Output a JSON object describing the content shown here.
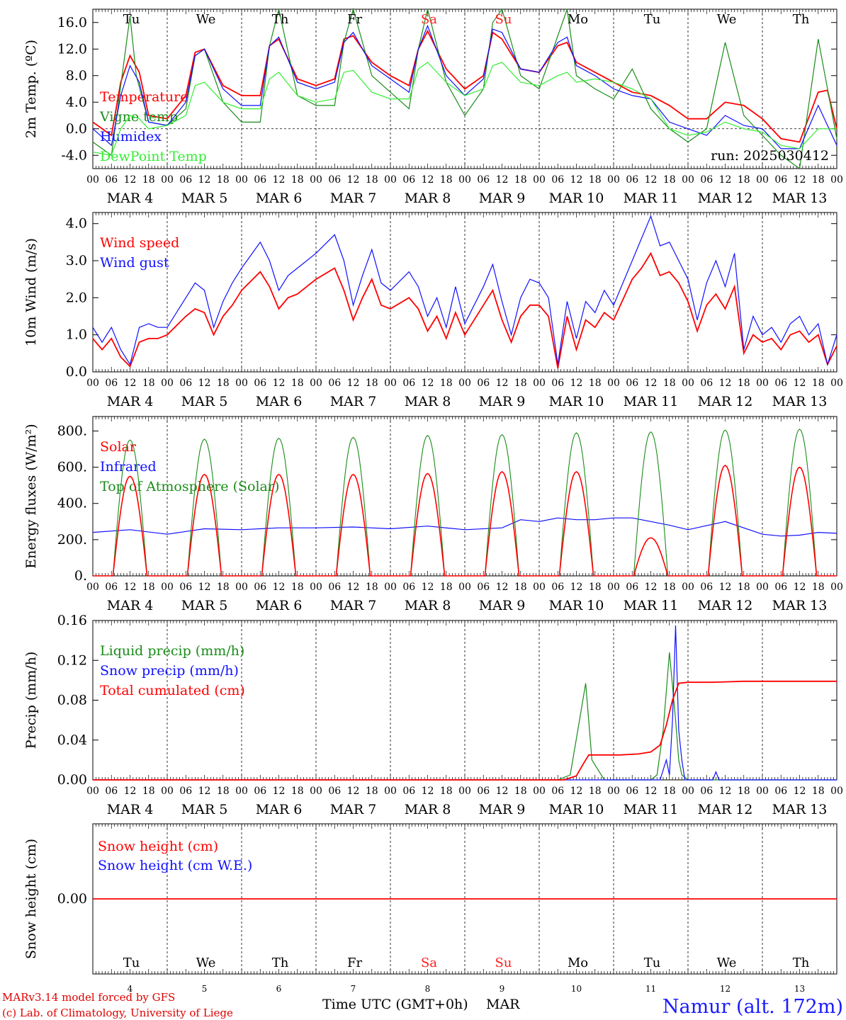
{
  "colors": {
    "red": "#ff0000",
    "green": "#1a8c1a",
    "blue": "#1010ff",
    "lightgreen": "#33ee33",
    "weekend": "#ff2020",
    "station": "#1a1aff"
  },
  "days": [
    {
      "name": "Tu",
      "date": "MAR  4",
      "num": "4",
      "weekend": false
    },
    {
      "name": "We",
      "date": "MAR  5",
      "num": "5",
      "weekend": false
    },
    {
      "name": "Th",
      "date": "MAR  6",
      "num": "6",
      "weekend": false
    },
    {
      "name": "Fr",
      "date": "MAR  7",
      "num": "7",
      "weekend": false
    },
    {
      "name": "Sa",
      "date": "MAR  8",
      "num": "8",
      "weekend": true
    },
    {
      "name": "Su",
      "date": "MAR  9",
      "num": "9",
      "weekend": true
    },
    {
      "name": "Mo",
      "date": "MAR 10",
      "num": "10",
      "weekend": false
    },
    {
      "name": "Tu",
      "date": "MAR 11",
      "num": "11",
      "weekend": false
    },
    {
      "name": "We",
      "date": "MAR 12",
      "num": "12",
      "weekend": false
    },
    {
      "name": "Th",
      "date": "MAR 13",
      "num": "13",
      "weekend": false
    }
  ],
  "hour_ticks": [
    "00",
    "06",
    "12",
    "18"
  ],
  "footer": {
    "model": "MARv3.14 model forced by GFS",
    "credit": "(c) Lab. of Climatology, University of Liege",
    "xtitle": "Time UTC (GMT+0h)",
    "month": "MAR",
    "station": "Namur (alt. 172m)"
  },
  "chart_data": [
    {
      "type": "line",
      "ylabel": "2m Temp. (ºC)",
      "ylim": [
        -6.0,
        18.0
      ],
      "yticks": [
        "-4.0",
        "0.0",
        "4.0",
        "8.0",
        "12.0",
        "16.0"
      ],
      "ytick_values": [
        -4,
        0,
        4,
        8,
        12,
        16
      ],
      "zero_line": true,
      "annotation": "run: 2025030412",
      "x_unit": "hours since MAR 4 00 UTC",
      "series": [
        {
          "name": "Temperature",
          "color": "red",
          "x": [
            0,
            6,
            9,
            12,
            15,
            18,
            24,
            30,
            33,
            36,
            42,
            48,
            54,
            57,
            60,
            66,
            72,
            78,
            81,
            84,
            90,
            96,
            102,
            105,
            108,
            114,
            120,
            126,
            129,
            132,
            138,
            144,
            150,
            153,
            156,
            162,
            168,
            174,
            180,
            186,
            192,
            198,
            204,
            210,
            216,
            222,
            228,
            234,
            237,
            240
          ],
          "y": [
            1.0,
            -1.0,
            7.0,
            11.0,
            8.5,
            2.0,
            1.5,
            5.0,
            11.5,
            12.0,
            6.5,
            5.0,
            5.0,
            12.5,
            13.5,
            7.5,
            6.5,
            7.5,
            13.5,
            14.0,
            10.0,
            8.0,
            6.5,
            12.0,
            14.7,
            9.0,
            6.0,
            8.0,
            14.5,
            13.5,
            9.0,
            8.5,
            12.5,
            13.0,
            10.0,
            8.5,
            7.0,
            5.5,
            5.0,
            3.5,
            1.5,
            1.5,
            4.0,
            3.5,
            1.5,
            -1.5,
            -2.0,
            5.5,
            5.8,
            0.0
          ]
        },
        {
          "name": "Vigne temp",
          "color": "green",
          "x": [
            0,
            6,
            10,
            12,
            14,
            18,
            24,
            30,
            33,
            36,
            42,
            48,
            54,
            57,
            60,
            66,
            72,
            78,
            81,
            84,
            90,
            96,
            102,
            105,
            108,
            114,
            120,
            126,
            129,
            132,
            138,
            144,
            150,
            153,
            156,
            162,
            168,
            174,
            180,
            186,
            192,
            198,
            204,
            210,
            216,
            222,
            228,
            234,
            240
          ],
          "y": [
            -2.0,
            -4.0,
            10.0,
            17.0,
            8.0,
            1.0,
            0.5,
            3.0,
            11.0,
            12.0,
            4.0,
            1.0,
            1.0,
            12.5,
            18.0,
            5.0,
            3.5,
            3.5,
            13.0,
            18.0,
            8.0,
            5.5,
            3.0,
            12.0,
            18.0,
            7.0,
            2.0,
            6.0,
            16.0,
            18.0,
            8.0,
            6.0,
            14.0,
            18.0,
            8.0,
            6.0,
            4.5,
            9.0,
            3.0,
            0.0,
            -2.0,
            0.0,
            13.0,
            2.0,
            -1.0,
            -4.0,
            -6.0,
            13.5,
            -1.5
          ]
        },
        {
          "name": "Humidex",
          "color": "blue",
          "x": [
            0,
            6,
            9,
            12,
            15,
            18,
            24,
            30,
            33,
            36,
            42,
            48,
            54,
            57,
            60,
            66,
            72,
            78,
            81,
            84,
            90,
            96,
            102,
            105,
            108,
            114,
            120,
            126,
            129,
            132,
            138,
            144,
            150,
            153,
            156,
            162,
            168,
            174,
            180,
            186,
            192,
            198,
            204,
            210,
            216,
            222,
            228,
            234,
            240
          ],
          "y": [
            0.0,
            -2.5,
            5.0,
            9.5,
            7.0,
            1.0,
            0.5,
            4.0,
            11.0,
            12.0,
            6.0,
            3.5,
            3.5,
            12.5,
            13.8,
            7.0,
            6.0,
            7.0,
            13.0,
            14.5,
            9.5,
            7.5,
            5.5,
            12.0,
            15.5,
            8.0,
            5.0,
            7.5,
            15.0,
            14.5,
            9.0,
            8.5,
            13.0,
            13.8,
            9.5,
            8.0,
            6.0,
            5.0,
            4.5,
            1.0,
            0.0,
            -1.0,
            2.0,
            0.5,
            0.0,
            -3.0,
            -3.0,
            3.5,
            -2.5
          ]
        },
        {
          "name": "DewPoint Temp",
          "color": "lightgreen",
          "x": [
            0,
            6,
            9,
            12,
            15,
            18,
            24,
            30,
            33,
            36,
            42,
            48,
            54,
            57,
            60,
            66,
            72,
            78,
            81,
            84,
            90,
            96,
            102,
            105,
            108,
            114,
            120,
            126,
            129,
            132,
            138,
            144,
            150,
            153,
            156,
            162,
            168,
            174,
            180,
            186,
            192,
            198,
            204,
            210,
            216,
            222,
            228,
            234,
            240
          ],
          "y": [
            -3.5,
            -4.0,
            0.0,
            2.0,
            1.5,
            0.0,
            0.5,
            2.0,
            6.5,
            7.0,
            4.0,
            3.0,
            3.0,
            7.5,
            8.5,
            5.0,
            4.0,
            4.5,
            8.5,
            8.8,
            5.5,
            4.5,
            4.5,
            9.0,
            10.0,
            7.0,
            5.0,
            6.0,
            9.5,
            10.0,
            7.0,
            6.5,
            8.0,
            8.5,
            7.0,
            7.5,
            7.0,
            6.0,
            4.5,
            0.0,
            -1.0,
            -0.5,
            1.0,
            0.0,
            -0.5,
            -2.5,
            -3.0,
            0.0,
            0.0
          ]
        }
      ]
    },
    {
      "type": "line",
      "ylabel": "10m Wind (m/s)",
      "ylim": [
        0.0,
        4.3
      ],
      "yticks": [
        "0.0",
        "1.0",
        "2.0",
        "3.0",
        "4.0"
      ],
      "ytick_values": [
        0,
        1,
        2,
        3,
        4
      ],
      "series": [
        {
          "name": "Wind speed",
          "color": "red",
          "x": [
            0,
            3,
            6,
            9,
            12,
            15,
            18,
            21,
            24,
            30,
            33,
            36,
            39,
            42,
            45,
            48,
            54,
            57,
            60,
            63,
            66,
            72,
            78,
            81,
            84,
            87,
            90,
            93,
            96,
            102,
            105,
            108,
            111,
            114,
            117,
            120,
            126,
            129,
            132,
            135,
            138,
            141,
            144,
            147,
            150,
            153,
            156,
            159,
            162,
            165,
            168,
            174,
            177,
            180,
            183,
            186,
            189,
            192,
            195,
            198,
            201,
            204,
            207,
            210,
            213,
            216,
            219,
            222,
            225,
            228,
            231,
            234,
            237,
            240
          ],
          "y": [
            0.9,
            0.6,
            0.9,
            0.4,
            0.15,
            0.8,
            0.9,
            0.9,
            1.0,
            1.5,
            1.7,
            1.6,
            1.0,
            1.5,
            1.8,
            2.2,
            2.7,
            2.3,
            1.7,
            2.0,
            2.1,
            2.5,
            2.8,
            2.2,
            1.4,
            2.0,
            2.5,
            1.8,
            1.7,
            2.0,
            1.7,
            1.1,
            1.5,
            0.9,
            1.6,
            1.0,
            1.8,
            2.2,
            1.4,
            0.8,
            1.5,
            1.8,
            1.8,
            1.5,
            0.1,
            1.5,
            0.6,
            1.4,
            1.2,
            1.6,
            1.4,
            2.5,
            2.8,
            3.2,
            2.6,
            2.7,
            2.4,
            1.9,
            1.1,
            1.8,
            2.1,
            1.7,
            2.3,
            0.5,
            1.0,
            0.8,
            0.9,
            0.6,
            1.0,
            1.1,
            0.8,
            1.0,
            0.2,
            0.7
          ]
        },
        {
          "name": "Wind gust",
          "color": "blue",
          "x": [
            0,
            3,
            6,
            9,
            12,
            15,
            18,
            21,
            24,
            30,
            33,
            36,
            39,
            42,
            45,
            48,
            54,
            57,
            60,
            63,
            66,
            72,
            78,
            81,
            84,
            87,
            90,
            93,
            96,
            102,
            105,
            108,
            111,
            114,
            117,
            120,
            126,
            129,
            132,
            135,
            138,
            141,
            144,
            147,
            150,
            153,
            156,
            159,
            162,
            165,
            168,
            174,
            177,
            180,
            183,
            186,
            189,
            192,
            195,
            198,
            201,
            204,
            207,
            210,
            213,
            216,
            219,
            222,
            225,
            228,
            231,
            234,
            237,
            240
          ],
          "y": [
            1.2,
            0.8,
            1.2,
            0.6,
            0.2,
            1.2,
            1.3,
            1.2,
            1.2,
            2.0,
            2.4,
            2.2,
            1.2,
            1.9,
            2.4,
            2.8,
            3.5,
            3.0,
            2.2,
            2.6,
            2.8,
            3.2,
            3.7,
            3.0,
            1.8,
            2.6,
            3.3,
            2.4,
            2.2,
            2.7,
            2.3,
            1.5,
            2.0,
            1.2,
            2.3,
            1.3,
            2.3,
            2.9,
            1.9,
            1.0,
            2.0,
            2.5,
            2.4,
            2.0,
            0.2,
            1.9,
            0.9,
            1.9,
            1.6,
            2.2,
            1.8,
            3.0,
            3.6,
            4.2,
            3.4,
            3.5,
            3.0,
            2.5,
            1.4,
            2.4,
            3.0,
            2.3,
            3.2,
            0.6,
            1.5,
            1.0,
            1.2,
            0.8,
            1.3,
            1.5,
            1.0,
            1.3,
            0.2,
            1.0
          ]
        }
      ]
    },
    {
      "type": "line",
      "ylabel": "Energy fluxes (W/m²)",
      "ylim": [
        0,
        880
      ],
      "yticks": [
        "0.",
        "200.",
        "400.",
        "600.",
        "800."
      ],
      "ytick_values": [
        0,
        200,
        400,
        600,
        800
      ],
      "solar_peaks": [
        550,
        560,
        560,
        560,
        565,
        575,
        575,
        210,
        610,
        600
      ],
      "toa_peaks": [
        750,
        755,
        760,
        765,
        775,
        780,
        790,
        795,
        805,
        810
      ],
      "series": [
        {
          "name": "Solar",
          "color": "red"
        },
        {
          "name": "Infrared",
          "color": "blue",
          "x": [
            0,
            12,
            24,
            36,
            48,
            60,
            72,
            84,
            96,
            108,
            120,
            132,
            138,
            144,
            150,
            156,
            162,
            168,
            174,
            180,
            186,
            192,
            204,
            216,
            222,
            228,
            234,
            240
          ],
          "y": [
            240,
            255,
            230,
            260,
            255,
            265,
            265,
            270,
            260,
            275,
            255,
            265,
            310,
            300,
            320,
            310,
            310,
            320,
            320,
            300,
            280,
            255,
            300,
            230,
            220,
            225,
            240,
            235
          ]
        },
        {
          "name": "Top of Atmosphere (Solar)",
          "color": "green"
        }
      ]
    },
    {
      "type": "line",
      "ylabel": "Precip (mm/h)",
      "ylim": [
        0.0,
        0.16
      ],
      "yticks": [
        "0.00",
        "0.04",
        "0.08",
        "0.12",
        "0.16"
      ],
      "ytick_values": [
        0,
        0.04,
        0.08,
        0.12,
        0.16
      ],
      "series": [
        {
          "name": "Liquid precip (mm/h)",
          "color": "green",
          "x": [
            0,
            150,
            154,
            157,
            159,
            161,
            165,
            180,
            182,
            184,
            186,
            188,
            189,
            190,
            192,
            194,
            240
          ],
          "y": [
            0,
            0,
            0.005,
            0.06,
            0.097,
            0.02,
            0,
            0,
            0.005,
            0.05,
            0.128,
            0.06,
            0.02,
            0.005,
            0.0,
            0.0,
            0.0
          ]
        },
        {
          "name": "Snow precip (mm/h)",
          "color": "blue",
          "x": [
            0,
            183,
            185,
            186,
            187,
            188,
            189,
            190,
            191,
            192,
            194,
            200,
            201,
            202,
            240
          ],
          "y": [
            0,
            0,
            0.02,
            0.005,
            0.06,
            0.155,
            0.05,
            0.02,
            0.0,
            0.0,
            0.0,
            0.0,
            0.008,
            0.0,
            0.0
          ]
        },
        {
          "name": "Total cumulated (cm)",
          "color": "red",
          "x": [
            0,
            152,
            156,
            158,
            160,
            164,
            170,
            176,
            180,
            183,
            185,
            187,
            189,
            192,
            200,
            210,
            220,
            240
          ],
          "y": [
            0,
            0,
            0.004,
            0.015,
            0.025,
            0.025,
            0.025,
            0.026,
            0.028,
            0.035,
            0.055,
            0.08,
            0.097,
            0.098,
            0.098,
            0.099,
            0.099,
            0.099
          ]
        }
      ]
    },
    {
      "type": "line",
      "ylabel": "Snow height (cm)",
      "ylim": [
        -0.01,
        0.01
      ],
      "yticks": [
        "0.00"
      ],
      "ytick_values": [
        0
      ],
      "series": [
        {
          "name": "Snow height (cm)",
          "color": "red",
          "x": [
            0,
            240
          ],
          "y": [
            0,
            0
          ]
        },
        {
          "name": "Snow height (cm W.E.)",
          "color": "blue"
        }
      ]
    }
  ]
}
